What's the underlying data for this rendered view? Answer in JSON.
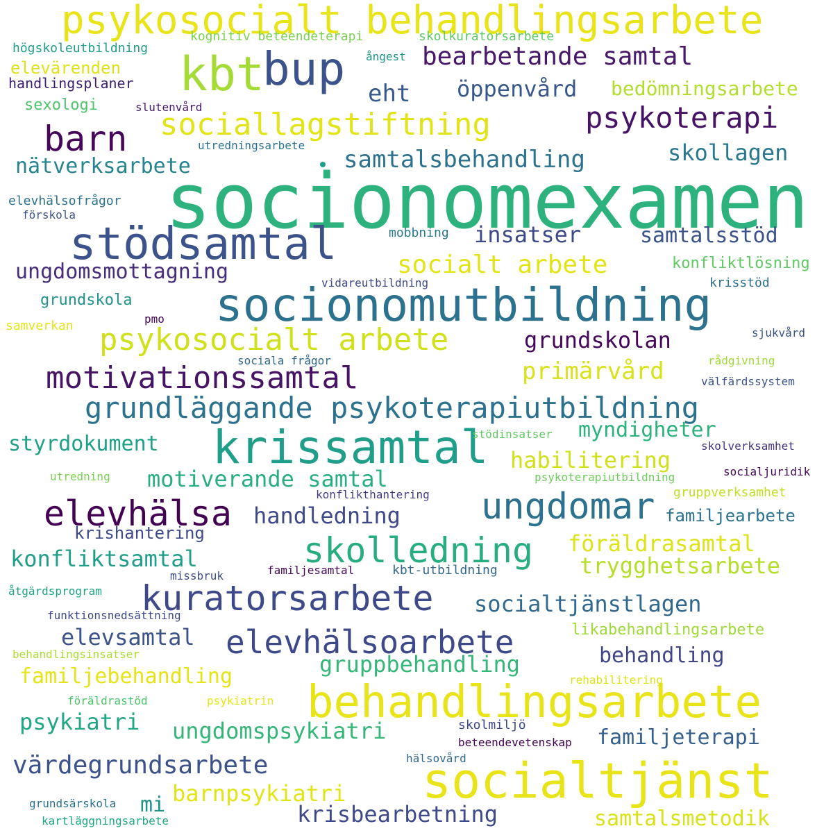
{
  "words": [
    {
      "text": "socionomexamen",
      "color": "#2db27d"
    },
    {
      "text": "psykosocialt behandlingsarbete",
      "color": "#e8e419"
    },
    {
      "text": "kbt",
      "color": "#a5db36"
    },
    {
      "text": "bup",
      "color": "#3b528b"
    },
    {
      "text": "bearbetande samtal",
      "color": "#48186a"
    },
    {
      "text": "socialtjänst",
      "color": "#e8e419"
    },
    {
      "text": "behandlingsarbete",
      "color": "#e8e419"
    },
    {
      "text": "socionomutbildning",
      "color": "#2c728e"
    },
    {
      "text": "stödsamtal",
      "color": "#3b528b"
    },
    {
      "text": "krissamtal",
      "color": "#1f9e89"
    },
    {
      "text": "kuratorsarbete",
      "color": "#3e4989"
    },
    {
      "text": "ungdomar",
      "color": "#2c728e"
    },
    {
      "text": "elevhälsa",
      "color": "#440154"
    },
    {
      "text": "elevhälsoarbete",
      "color": "#3e4989"
    },
    {
      "text": "skolledning",
      "color": "#27ad81"
    },
    {
      "text": "grundläggande psykoterapiutbildning",
      "color": "#2c728e"
    },
    {
      "text": "motivationssamtal",
      "color": "#471365"
    },
    {
      "text": "psykosocialt arbete",
      "color": "#d0e11c"
    },
    {
      "text": "sociallagstiftning",
      "color": "#e2e418"
    },
    {
      "text": "barn",
      "color": "#46075a"
    },
    {
      "text": "psykoterapi",
      "color": "#471365"
    },
    {
      "text": "eht",
      "color": "#38598c"
    },
    {
      "text": "öppenvård",
      "color": "#38588c"
    },
    {
      "text": "bedömningsarbete",
      "color": "#b2dd2d"
    },
    {
      "text": "samtalsbehandling",
      "color": "#2c728e"
    },
    {
      "text": "skollagen",
      "color": "#2a788e"
    },
    {
      "text": "nätverksarbete",
      "color": "#25848e"
    },
    {
      "text": "insatser",
      "color": "#3e4989"
    },
    {
      "text": "samtalsstöd",
      "color": "#3b528b"
    },
    {
      "text": "socialt arbete",
      "color": "#e2e418"
    },
    {
      "text": "ungdomsmottagning",
      "color": "#472d7b"
    },
    {
      "text": "konfliktlösning",
      "color": "#5ec962"
    },
    {
      "text": "krisstöd",
      "color": "#2d708e"
    },
    {
      "text": "grundskolan",
      "color": "#46075a"
    },
    {
      "text": "primärvård",
      "color": "#d8e219"
    },
    {
      "text": "myndigheter",
      "color": "#2db27d"
    },
    {
      "text": "styrdokument",
      "color": "#1fa187"
    },
    {
      "text": "habilitering",
      "color": "#d0e11c"
    },
    {
      "text": "motiverande samtal",
      "color": "#29af7f"
    },
    {
      "text": "handledning",
      "color": "#3e4989"
    },
    {
      "text": "familjearbete",
      "color": "#2c728e"
    },
    {
      "text": "föräldrasamtal",
      "color": "#dde318"
    },
    {
      "text": "trygghetsarbete",
      "color": "#b5de2b"
    },
    {
      "text": "konfliktsamtal",
      "color": "#1f9e89"
    },
    {
      "text": "krishantering",
      "color": "#3e4989"
    },
    {
      "text": "socialtjänstlagen",
      "color": "#31688e"
    },
    {
      "text": "elevsamtal",
      "color": "#3b528b"
    },
    {
      "text": "behandling",
      "color": "#404688"
    },
    {
      "text": "likabehandlingsarbete",
      "color": "#a0da39"
    },
    {
      "text": "familjebehandling",
      "color": "#e5e419"
    },
    {
      "text": "gruppbehandling",
      "color": "#35b779"
    },
    {
      "text": "psykiatri",
      "color": "#21a685"
    },
    {
      "text": "ungdomspsykiatri",
      "color": "#34b679"
    },
    {
      "text": "familjeterapi",
      "color": "#355f8d"
    },
    {
      "text": "värdegrundsarbete",
      "color": "#3b528b"
    },
    {
      "text": "barnpsykiatri",
      "color": "#e2e418"
    },
    {
      "text": "mi",
      "color": "#20928c"
    },
    {
      "text": "krisbearbetning",
      "color": "#3e4989"
    },
    {
      "text": "samtalsmetodik",
      "color": "#d8e219"
    },
    {
      "text": "kognitiv beteendeterapi",
      "color": "#7ad151"
    },
    {
      "text": "skolkuratorsarbete",
      "color": "#5ec962"
    },
    {
      "text": "högskoleutbildning",
      "color": "#1f9e89"
    },
    {
      "text": "ångest",
      "color": "#21918c"
    },
    {
      "text": "elevärenden",
      "color": "#dde318"
    },
    {
      "text": "handlingsplaner",
      "color": "#3b1c6f"
    },
    {
      "text": "sexologi",
      "color": "#4ec36b"
    },
    {
      "text": "slutenvård",
      "color": "#48186a"
    },
    {
      "text": "utredningsarbete",
      "color": "#2c728e"
    },
    {
      "text": "elevhälsofrågor",
      "color": "#2c728e"
    },
    {
      "text": "förskola",
      "color": "#3b528b"
    },
    {
      "text": "mobbning",
      "color": "#2a788e"
    },
    {
      "text": "vidareutbildning",
      "color": "#3e4989"
    },
    {
      "text": "grundskola",
      "color": "#21918c"
    },
    {
      "text": "pmo",
      "color": "#46075a"
    },
    {
      "text": "samverkan",
      "color": "#e5e419"
    },
    {
      "text": "sjukvård",
      "color": "#3b528b"
    },
    {
      "text": "sociala frågor",
      "color": "#31688e"
    },
    {
      "text": "rådgivning",
      "color": "#a0da39"
    },
    {
      "text": "välfärdssystem",
      "color": "#3b528b"
    },
    {
      "text": "stödinsatser",
      "color": "#5ec962"
    },
    {
      "text": "skolverksamhet",
      "color": "#46337e"
    },
    {
      "text": "utredning",
      "color": "#7ad151"
    },
    {
      "text": "psykoterapiutbildning",
      "color": "#6ccd5a"
    },
    {
      "text": "socialjuridik",
      "color": "#46075a"
    },
    {
      "text": "konflikthantering",
      "color": "#433e85"
    },
    {
      "text": "gruppverksamhet",
      "color": "#c2df23"
    },
    {
      "text": "missbruk",
      "color": "#3e4989"
    },
    {
      "text": "familjesamtal",
      "color": "#46075a"
    },
    {
      "text": "kbt-utbildning",
      "color": "#31688e"
    },
    {
      "text": "åtgärdsprogram",
      "color": "#1fa187"
    },
    {
      "text": "funktionsnedsättning",
      "color": "#3e4989"
    },
    {
      "text": "behandlingsinsatser",
      "color": "#addc30"
    },
    {
      "text": "rehabilitering",
      "color": "#dde318"
    },
    {
      "text": "föräldrastöd",
      "color": "#4ec36b"
    },
    {
      "text": "psykiatrin",
      "color": "#e5e419"
    },
    {
      "text": "skolmiljö",
      "color": "#3e4989"
    },
    {
      "text": "beteendevetenskap",
      "color": "#440154"
    },
    {
      "text": "hälsovård",
      "color": "#31688e"
    },
    {
      "text": "grundsärskola",
      "color": "#2c728e"
    },
    {
      "text": "kartläggningsarbete",
      "color": "#21a685"
    }
  ],
  "dot": {
    "color": "#1f9e89"
  }
}
